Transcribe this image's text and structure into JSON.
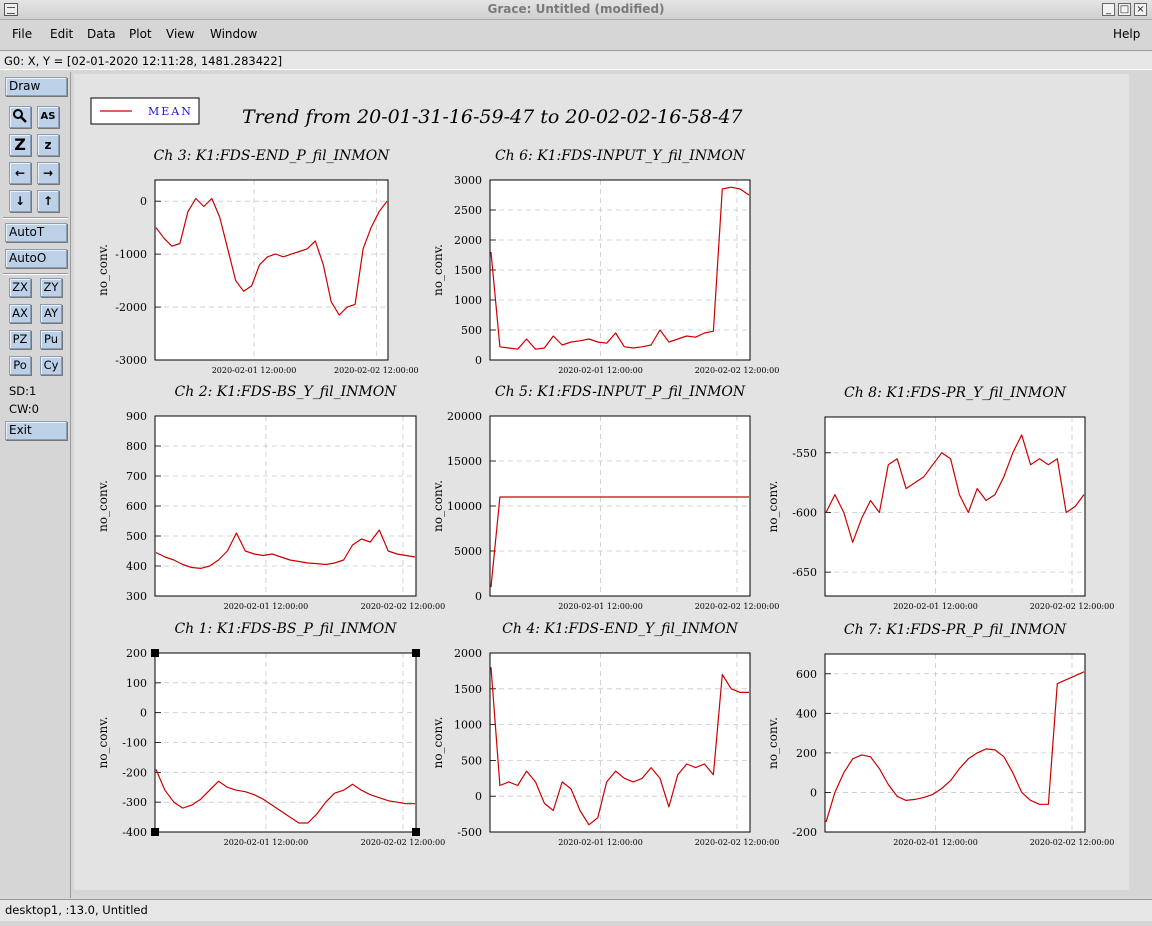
{
  "window": {
    "title": "Grace: Untitled (modified)",
    "min": "_",
    "max": "□",
    "close": "×"
  },
  "menubar": {
    "file": "File",
    "edit": "Edit",
    "data": "Data",
    "plot": "Plot",
    "view": "View",
    "window": "Window",
    "help": "Help"
  },
  "locator": {
    "text": "G0: X, Y = [02-01-2020 12:11:28, 1481.283422]"
  },
  "toolbar": {
    "draw": "Draw",
    "autot": "AutoT",
    "autoo": "AutoO",
    "zoom_label": "Z",
    "zoom_small_label": "z",
    "text_label": "AS",
    "zx": "ZX",
    "zy": "ZY",
    "ax": "AX",
    "ay": "AY",
    "pz": "PZ",
    "pu": "Pu",
    "po": "Po",
    "cy": "Cy",
    "sd": "SD:1",
    "cw": "CW:0",
    "exit": "Exit"
  },
  "statusbar": {
    "text": "desktop1, :13.0, Untitled"
  },
  "legend": {
    "label": "MEAN",
    "color": "#cc0000"
  },
  "figure_title": "Trend from 20-01-31-16-59-47 to 20-02-02-16-58-47",
  "chart_data": [
    {
      "type": "line",
      "title": "Ch 3: K1:FDS-END_P_fil_INMON",
      "ylabel": "no_conv.",
      "ylim": [
        -3000,
        400
      ],
      "yticks": [
        "0",
        "-1000",
        "-2000",
        "-3000"
      ],
      "xticks": [
        "2020-02-01 12:00:00",
        "2020-02-02 12:00:00"
      ],
      "series": [
        {
          "values": [
            -500,
            -700,
            -850,
            -800,
            -200,
            50,
            -100,
            50,
            -300,
            -900,
            -1500,
            -1700,
            -1600,
            -1200,
            -1050,
            -1000,
            -1050,
            -1000,
            -950,
            -900,
            -750,
            -1200,
            -1900,
            -2150,
            -2000,
            -1950,
            -900,
            -500,
            -200,
            0
          ]
        }
      ]
    },
    {
      "type": "line",
      "title": "Ch 6: K1:FDS-INPUT_Y_fil_INMON",
      "ylabel": "no_conv.",
      "ylim": [
        0,
        3000
      ],
      "yticks": [
        "3000",
        "2500",
        "2000",
        "1500",
        "1000",
        "500",
        "0"
      ],
      "xticks": [
        "2020-02-01 12:00:00",
        "2020-02-02 12:00:00"
      ],
      "series": [
        {
          "values": [
            1800,
            220,
            200,
            180,
            350,
            180,
            200,
            400,
            250,
            300,
            320,
            350,
            300,
            280,
            450,
            220,
            200,
            220,
            250,
            500,
            300,
            350,
            400,
            380,
            450,
            480,
            2850,
            2880,
            2850,
            2750
          ]
        }
      ]
    },
    {
      "type": "line",
      "title": "Ch 2: K1:FDS-BS_Y_fil_INMON",
      "ylabel": "no_conv.",
      "ylim": [
        300,
        900
      ],
      "yticks": [
        "900",
        "800",
        "700",
        "600",
        "500",
        "400",
        "300"
      ],
      "xticks": [
        "2020-02-01 12:00:00",
        "2020-02-02 12:00:00"
      ],
      "series": [
        {
          "values": [
            445,
            430,
            420,
            405,
            395,
            392,
            400,
            420,
            450,
            510,
            450,
            440,
            435,
            440,
            430,
            420,
            415,
            410,
            408,
            405,
            410,
            420,
            470,
            490,
            480,
            520,
            450,
            440,
            435,
            430
          ]
        }
      ]
    },
    {
      "type": "line",
      "title": "Ch 5: K1:FDS-INPUT_P_fil_INMON",
      "ylabel": "no_conv.",
      "ylim": [
        0,
        20000
      ],
      "yticks": [
        "20000",
        "15000",
        "10000",
        "5000",
        "0"
      ],
      "xticks": [
        "2020-02-01 12:00:00",
        "2020-02-02 12:00:00"
      ],
      "series": [
        {
          "values": [
            1000,
            11000,
            11000,
            11000,
            11000,
            11000,
            11000,
            11000,
            11000,
            11000,
            11000,
            11000,
            11000,
            11000,
            11000,
            11000,
            11000,
            11000,
            11000,
            11000,
            11000,
            11000,
            11000,
            11000,
            11000,
            11000,
            11000,
            11000,
            11000,
            11000
          ]
        }
      ]
    },
    {
      "type": "line",
      "title": "Ch 8: K1:FDS-PR_Y_fil_INMON",
      "ylabel": "no_conv.",
      "ylim": [
        -670,
        -520
      ],
      "yticks": [
        "-550",
        "-600",
        "-650"
      ],
      "xticks": [
        "2020-02-01 12:00:00",
        "2020-02-02 12:00:00"
      ],
      "series": [
        {
          "values": [
            -600,
            -585,
            -600,
            -625,
            -605,
            -590,
            -600,
            -560,
            -555,
            -580,
            -575,
            -570,
            -560,
            -550,
            -555,
            -585,
            -600,
            -580,
            -590,
            -585,
            -570,
            -550,
            -535,
            -560,
            -555,
            -560,
            -555,
            -600,
            -595,
            -585
          ]
        }
      ]
    },
    {
      "type": "line",
      "title": "Ch 1: K1:FDS-BS_P_fil_INMON",
      "ylabel": "no_conv.",
      "ylim": [
        -400,
        200
      ],
      "yticks": [
        "200",
        "100",
        "0",
        "-100",
        "-200",
        "-300",
        "-400"
      ],
      "xticks": [
        "2020-02-01 12:00:00",
        "2020-02-02 12:00:00"
      ],
      "series": [
        {
          "values": [
            -190,
            -260,
            -300,
            -320,
            -310,
            -290,
            -260,
            -230,
            -250,
            -260,
            -265,
            -275,
            -290,
            -310,
            -330,
            -350,
            -370,
            -370,
            -340,
            -300,
            -270,
            -260,
            -240,
            -260,
            -275,
            -285,
            -295,
            -300,
            -305,
            -305
          ]
        }
      ]
    },
    {
      "type": "line",
      "title": "Ch 4: K1:FDS-END_Y_fil_INMON",
      "ylabel": "no_conv.",
      "ylim": [
        -500,
        2000
      ],
      "yticks": [
        "2000",
        "1500",
        "1000",
        "500",
        "0",
        "-500"
      ],
      "xticks": [
        "2020-02-01 12:00:00",
        "2020-02-02 12:00:00"
      ],
      "series": [
        {
          "values": [
            1800,
            150,
            200,
            150,
            350,
            200,
            -100,
            -200,
            200,
            100,
            -200,
            -400,
            -300,
            200,
            350,
            250,
            200,
            250,
            400,
            250,
            -150,
            300,
            450,
            400,
            450,
            300,
            1700,
            1500,
            1450,
            1450
          ]
        }
      ]
    },
    {
      "type": "line",
      "title": "Ch 7: K1:FDS-PR_P_fil_INMON",
      "ylabel": "no_conv.",
      "ylim": [
        -200,
        700
      ],
      "yticks": [
        "600",
        "400",
        "200",
        "0",
        "-200"
      ],
      "xticks": [
        "2020-02-01 12:00:00",
        "2020-02-02 12:00:00"
      ],
      "series": [
        {
          "values": [
            -150,
            0,
            100,
            170,
            190,
            180,
            120,
            40,
            -20,
            -40,
            -35,
            -25,
            -10,
            20,
            60,
            120,
            170,
            200,
            220,
            215,
            180,
            100,
            0,
            -40,
            -60,
            -60,
            550,
            570,
            590,
            610
          ]
        }
      ]
    }
  ]
}
